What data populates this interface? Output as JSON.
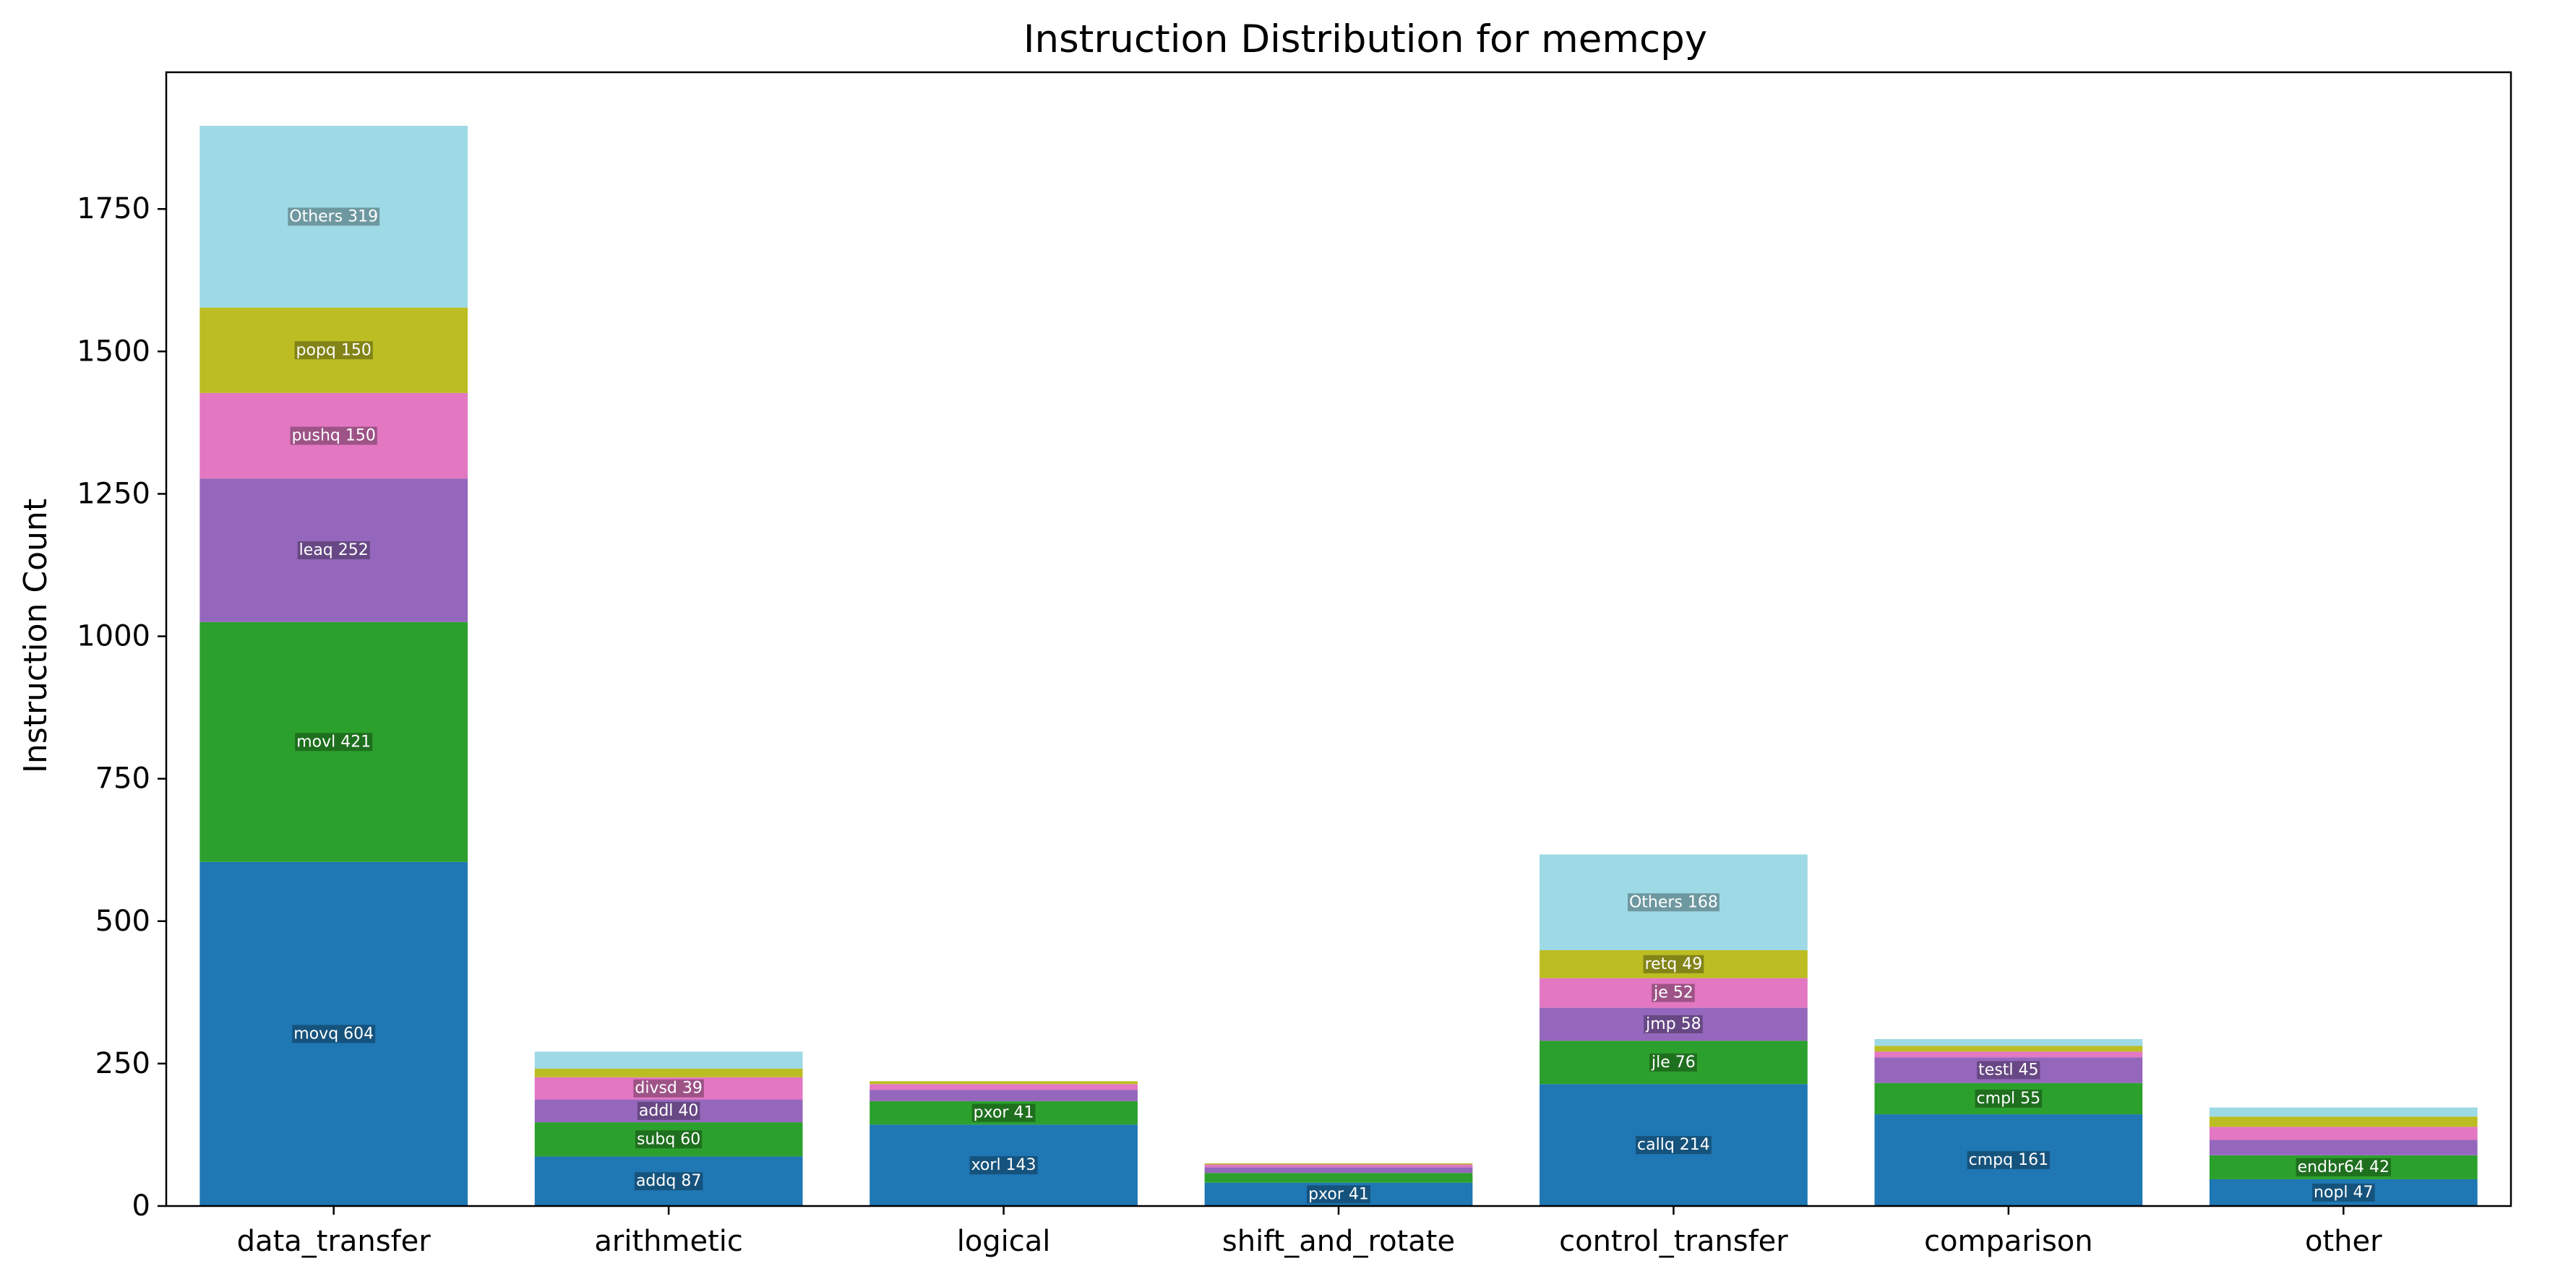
{
  "chart_data": {
    "type": "bar",
    "stacked": true,
    "title": "Instruction Distribution for memcpy",
    "xlabel": "",
    "ylabel": "Instruction Count",
    "ylim": [
      0,
      1990
    ],
    "yticks": [
      0,
      250,
      500,
      750,
      1000,
      1250,
      1500,
      1750
    ],
    "grid": false,
    "categories": [
      "data_transfer",
      "arithmetic",
      "logical",
      "shift_and_rotate",
      "control_transfer",
      "comparison",
      "other"
    ],
    "colors": [
      "#1f77b4",
      "#2ca02c",
      "#9467bd",
      "#e377c2",
      "#bcbd22",
      "#9edae5"
    ],
    "stacks": [
      [
        {
          "label": "movq",
          "value": 604
        },
        {
          "label": "movl",
          "value": 421
        },
        {
          "label": "leaq",
          "value": 252
        },
        {
          "label": "pushq",
          "value": 150
        },
        {
          "label": "popq",
          "value": 150
        },
        {
          "label": "Others",
          "value": 319
        }
      ],
      [
        {
          "label": "addq",
          "value": 87
        },
        {
          "label": "subq",
          "value": 60
        },
        {
          "label": "addl",
          "value": 40
        },
        {
          "label": "divsd",
          "value": 39
        },
        {
          "label": "",
          "value": 15
        },
        {
          "label": "",
          "value": 30
        }
      ],
      [
        {
          "label": "xorl",
          "value": 143
        },
        {
          "label": "pxor",
          "value": 41
        },
        {
          "label": "",
          "value": 20
        },
        {
          "label": "",
          "value": 10
        },
        {
          "label": "",
          "value": 5
        },
        {
          "label": "",
          "value": 0
        }
      ],
      [
        {
          "label": "pxor",
          "value": 41
        },
        {
          "label": "",
          "value": 17
        },
        {
          "label": "",
          "value": 10
        },
        {
          "label": "",
          "value": 5
        },
        {
          "label": "",
          "value": 2
        },
        {
          "label": "",
          "value": 0
        }
      ],
      [
        {
          "label": "callq",
          "value": 214
        },
        {
          "label": "jle",
          "value": 76
        },
        {
          "label": "jmp",
          "value": 58
        },
        {
          "label": "je",
          "value": 52
        },
        {
          "label": "retq",
          "value": 49
        },
        {
          "label": "Others",
          "value": 168
        }
      ],
      [
        {
          "label": "cmpq",
          "value": 161
        },
        {
          "label": "cmpl",
          "value": 55
        },
        {
          "label": "testl",
          "value": 45
        },
        {
          "label": "",
          "value": 10
        },
        {
          "label": "",
          "value": 10
        },
        {
          "label": "",
          "value": 12
        }
      ],
      [
        {
          "label": "nopl",
          "value": 47
        },
        {
          "label": "endbr64",
          "value": 42
        },
        {
          "label": "",
          "value": 27
        },
        {
          "label": "",
          "value": 23
        },
        {
          "label": "",
          "value": 18
        },
        {
          "label": "",
          "value": 16
        }
      ]
    ]
  }
}
